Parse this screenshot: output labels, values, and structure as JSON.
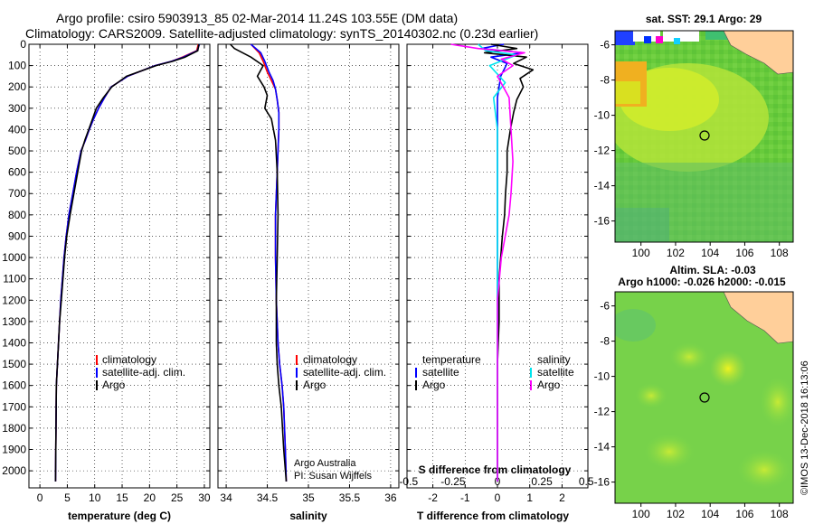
{
  "title": {
    "line1": "Argo profile: csiro 5903913_85 02-Mar-2014 11.24S 103.55E (DM data)",
    "line2": "Climatology: CARS2009. Satellite-adjusted climatology: synTS_20140302.nc (0.23d earlier)"
  },
  "credit": {
    "line1": "Argo Australia",
    "line2": "PI: Susan Wijffels",
    "stamp": "©IMOS 13-Dec-2018 16:13:06"
  },
  "colors": {
    "climatology": "#ff0000",
    "satellite": "#0000ff",
    "argo": "#000000",
    "salinity_satellite": "#00e5ee",
    "salinity_argo": "#ff00ff"
  },
  "chart_data": [
    {
      "type": "line",
      "xlabel": "temperature (deg C)",
      "ylabel": "",
      "xlim": [
        -2,
        31
      ],
      "ylim": [
        2080,
        0
      ],
      "xticks": [
        0,
        5,
        10,
        15,
        20,
        25,
        30
      ],
      "yticks": [
        0,
        100,
        200,
        300,
        400,
        500,
        600,
        700,
        800,
        900,
        1000,
        1100,
        1200,
        1300,
        1400,
        1500,
        1600,
        1700,
        1800,
        1900,
        2000
      ],
      "legend": [
        "climatology",
        "satellite-adj. clim.",
        "Argo"
      ],
      "legend_position": "lower-right",
      "grid": true,
      "series": [
        {
          "name": "climatology",
          "color": "#ff0000",
          "x": [
            28.9,
            28.6,
            26,
            24,
            21,
            16,
            13,
            11.8,
            10.7,
            9.8,
            9,
            8.3,
            7.5,
            6.7,
            6,
            5.3,
            4.8,
            4.4,
            4.1,
            3.8,
            3.6,
            3.4,
            3.2,
            3.0,
            2.85
          ],
          "y": [
            0,
            30,
            60,
            80,
            100,
            150,
            200,
            250,
            300,
            350,
            400,
            450,
            500,
            600,
            700,
            800,
            900,
            1000,
            1100,
            1200,
            1300,
            1400,
            1500,
            1600,
            2050
          ]
        },
        {
          "name": "satellite-adj. clim.",
          "color": "#0000ff",
          "x": [
            29.1,
            28.7,
            26.2,
            24,
            21,
            16,
            13,
            11.8,
            10.7,
            9.8,
            9,
            8.3,
            7.5,
            6.7,
            6,
            5.3,
            4.8,
            4.4,
            4.1,
            3.8,
            3.6,
            3.4,
            3.2,
            3.0,
            2.85
          ],
          "y": [
            0,
            30,
            60,
            80,
            100,
            150,
            200,
            250,
            300,
            350,
            400,
            450,
            500,
            600,
            700,
            800,
            900,
            1000,
            1100,
            1200,
            1300,
            1400,
            1500,
            1600,
            2050
          ]
        },
        {
          "name": "Argo",
          "color": "#000000",
          "x": [
            29,
            28.8,
            26.5,
            24.2,
            21.2,
            15.8,
            13.1,
            11.6,
            10.3,
            9.6,
            8.9,
            8.2,
            7.6,
            6.9,
            6.2,
            5.5,
            4.9,
            4.5,
            4.2,
            3.9,
            3.6,
            3.4,
            3.2,
            3.0,
            2.85
          ],
          "y": [
            0,
            30,
            60,
            80,
            100,
            150,
            200,
            250,
            300,
            350,
            400,
            450,
            500,
            600,
            700,
            800,
            900,
            1000,
            1100,
            1200,
            1300,
            1400,
            1500,
            1600,
            2050
          ]
        }
      ]
    },
    {
      "type": "line",
      "xlabel": "salinity",
      "ylabel": "",
      "xlim": [
        33.9,
        36.1
      ],
      "ylim": [
        2080,
        0
      ],
      "xticks": [
        34,
        34.5,
        35,
        35.5,
        36
      ],
      "legend": [
        "climatology",
        "satellite-adj. clim.",
        "Argo"
      ],
      "legend_position": "lower-right",
      "grid": true,
      "series": [
        {
          "name": "climatology",
          "color": "#ff0000",
          "x": [
            34.3,
            34.4,
            34.45,
            34.5,
            34.55,
            34.6,
            34.62,
            34.64,
            34.64,
            34.63,
            34.62,
            34.6,
            34.6,
            34.61,
            34.63,
            34.65,
            34.68,
            34.7,
            34.72,
            34.73
          ],
          "y": [
            0,
            40,
            80,
            130,
            170,
            210,
            260,
            320,
            400,
            500,
            600,
            800,
            1000,
            1200,
            1400,
            1500,
            1600,
            1700,
            1900,
            2050
          ]
        },
        {
          "name": "satellite-adj. clim.",
          "color": "#0000ff",
          "x": [
            34.3,
            34.42,
            34.47,
            34.52,
            34.57,
            34.6,
            34.62,
            34.64,
            34.64,
            34.63,
            34.62,
            34.6,
            34.6,
            34.61,
            34.63,
            34.65,
            34.68,
            34.7,
            34.72,
            34.73
          ],
          "y": [
            0,
            40,
            80,
            130,
            170,
            210,
            260,
            320,
            400,
            500,
            600,
            800,
            1000,
            1200,
            1400,
            1500,
            1600,
            1700,
            1900,
            2050
          ]
        },
        {
          "name": "Argo",
          "color": "#000000",
          "x": [
            34.05,
            34.1,
            34.3,
            34.45,
            34.38,
            34.46,
            34.5,
            34.47,
            34.55,
            34.6,
            34.62,
            34.63,
            34.62,
            34.61,
            34.61,
            34.62,
            34.64,
            34.67,
            34.7,
            34.73
          ],
          "y": [
            0,
            20,
            60,
            100,
            150,
            200,
            240,
            300,
            350,
            450,
            600,
            800,
            1000,
            1200,
            1400,
            1500,
            1600,
            1700,
            1900,
            2050
          ]
        }
      ]
    },
    {
      "type": "line",
      "xlabel": "T difference from climatology",
      "xlabel_top": "S difference from climatology",
      "xlim": [
        -2.8,
        2.8
      ],
      "ylim": [
        2080,
        0
      ],
      "xticks": [
        -2,
        -1,
        0,
        1,
        2
      ],
      "xticks_s": [
        -0.5,
        -0.25,
        0,
        0.25,
        0.5
      ],
      "xticks_s_labels": [
        "-0.5",
        "-0.25",
        "0",
        "0.25",
        "0.5"
      ],
      "legend_left_title": "temperature",
      "legend_left": [
        "satellite",
        "Argo"
      ],
      "legend_right_title": "salinity",
      "legend_right": [
        "satellite",
        "Argo"
      ],
      "grid": true,
      "series": [
        {
          "name": "temperature satellite",
          "color": "#0000ff",
          "x": [
            0.2,
            -0.5,
            0.8,
            -0.2,
            0.3,
            0.1,
            0,
            0,
            0,
            0,
            0,
            0,
            0,
            0,
            0
          ],
          "y": [
            0,
            20,
            40,
            60,
            90,
            150,
            250,
            400,
            600,
            900,
            1200,
            1500,
            1800,
            1950,
            2050
          ]
        },
        {
          "name": "temperature Argo",
          "color": "#000000",
          "x": [
            -0.2,
            0.6,
            -0.4,
            0.9,
            0.5,
            1.1,
            0.7,
            0.8,
            0.6,
            0.5,
            0.4,
            0.3,
            0.3,
            0.25,
            0.22,
            0.15,
            0.1,
            0.05,
            0.05,
            0,
            0,
            0
          ],
          "y": [
            0,
            20,
            40,
            60,
            90,
            120,
            160,
            200,
            260,
            320,
            400,
            500,
            600,
            700,
            800,
            900,
            1000,
            1100,
            1300,
            1500,
            1800,
            2050
          ]
        },
        {
          "name": "salinity satellite",
          "color": "#00e5ee",
          "x": [
            -0.5,
            -0.3,
            0.5,
            -0.2,
            0.2,
            -0.1,
            0,
            0,
            0,
            0,
            0,
            0,
            0
          ],
          "y": [
            0,
            30,
            50,
            100,
            180,
            250,
            400,
            600,
            900,
            1200,
            1500,
            1800,
            2050
          ]
        },
        {
          "name": "salinity Argo",
          "color": "#ff00ff",
          "x": [
            -1.2,
            -0.5,
            0.7,
            0.1,
            0.4,
            0,
            0.3,
            0.35,
            0.4,
            0.35,
            0.3,
            0.2,
            0.1,
            0,
            0
          ],
          "y": [
            0,
            20,
            40,
            70,
            100,
            150,
            250,
            400,
            550,
            700,
            800,
            900,
            1000,
            1200,
            2050
          ]
        }
      ]
    }
  ],
  "maps": [
    {
      "name": "sst",
      "header": "sat. SST: 29.1 Argo: 29",
      "yticks": [
        -6,
        -8,
        -10,
        -12,
        -14,
        -16
      ],
      "xticks": [
        100,
        102,
        104,
        106,
        108
      ],
      "ylim": [
        -17.2,
        -5.2
      ],
      "xlim": [
        98.5,
        108.8
      ],
      "argo_position": {
        "lon": 103.55,
        "lat": -11.24
      }
    },
    {
      "name": "sla",
      "header1": "Altim. SLA: -0.03",
      "header2": "Argo h1000: -0.026 h2000: -0.015",
      "yticks": [
        -6,
        -8,
        -10,
        -12,
        -14,
        -16
      ],
      "xticks": [
        100,
        102,
        104,
        106,
        108
      ],
      "ylim": [
        -17.2,
        -5.2
      ],
      "xlim": [
        98.5,
        108.8
      ],
      "argo_position": {
        "lon": 103.55,
        "lat": -11.24
      }
    }
  ]
}
